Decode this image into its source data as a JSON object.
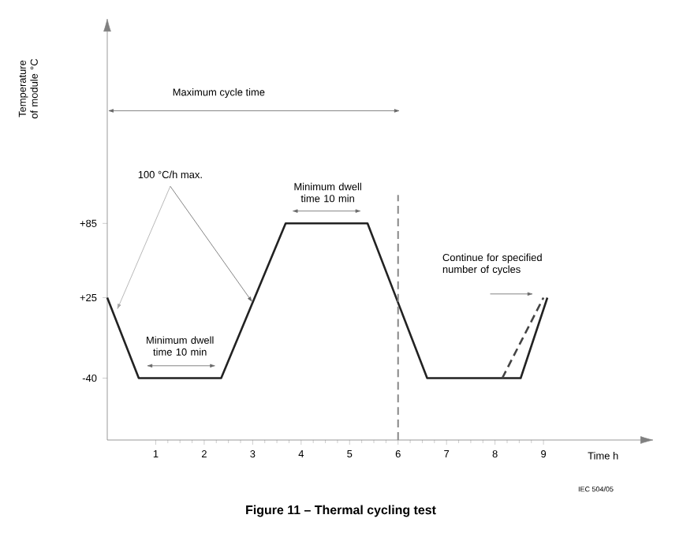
{
  "chart_data": {
    "type": "line",
    "title": "Figure 11 – Thermal cycling test",
    "xlabel": "Time  h",
    "ylabel": "Temperature of module °C",
    "series": [
      {
        "color": "#222222",
        "line_style": "solid",
        "x": [
          0,
          0.65,
          2.35,
          3.68,
          5.37,
          6.6,
          8.53,
          9.08
        ],
        "values": [
          25,
          -40,
          -40,
          85,
          85,
          -40,
          -40,
          25
        ]
      },
      {
        "color": "#444444",
        "line_style": "dashed",
        "x": [
          8.15,
          9.0
        ],
        "values": [
          -40,
          25
        ]
      }
    ],
    "xlim": [
      0,
      11
    ],
    "xticks": [
      1,
      2,
      3,
      4,
      5,
      6,
      7,
      8,
      9
    ],
    "ylim": [
      -90,
      240
    ],
    "yticks": [
      {
        "value": -40,
        "label": "-40"
      },
      {
        "value": 25,
        "label": "+25"
      },
      {
        "value": 85,
        "label": "+85"
      }
    ],
    "ref_lines": [
      {
        "axis": "x",
        "value": 6,
        "color": "#888888",
        "line_style": "dashed"
      }
    ],
    "annotations": [
      "Maximum cycle time",
      {
        "text": "100 °C/h max.",
        "x": 3.0,
        "y": 21
      },
      "Minimum dwell time 10 min",
      "Minimum dwell time 10 min",
      "Continue for specified number of cycles",
      "IEC 504/05"
    ]
  }
}
